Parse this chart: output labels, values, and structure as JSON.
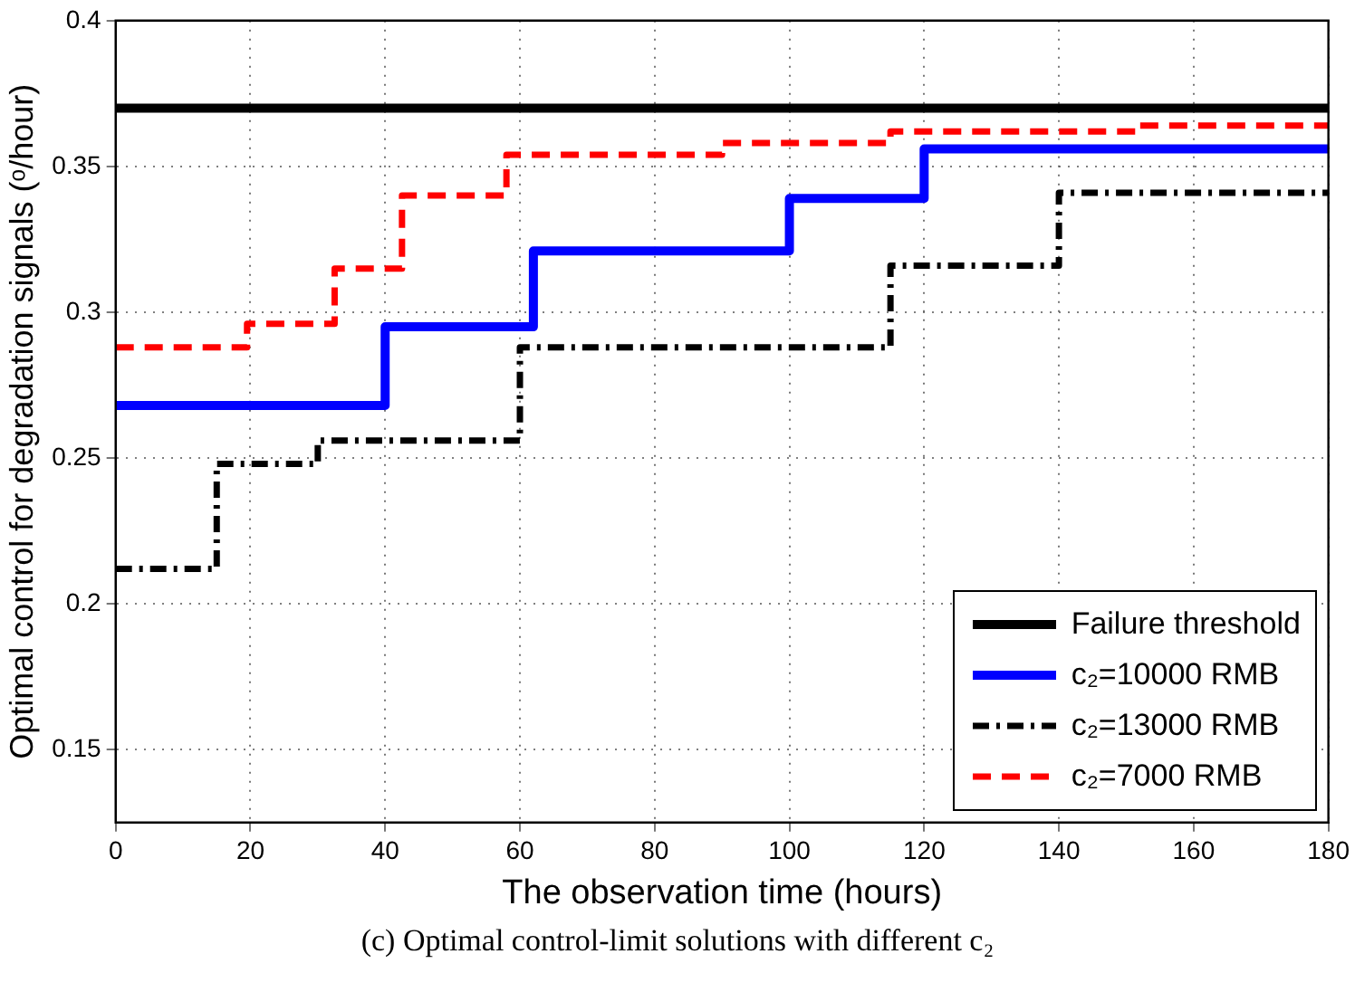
{
  "chart_data": {
    "type": "step",
    "xlabel": "The observation time (hours)",
    "ylabel": "Optimal control for degradation signals (ᵒ/hour)",
    "annotations": [
      "(c) Optimal control-limit solutions with different c₂"
    ],
    "xlim": [
      0,
      180
    ],
    "xticks": [
      0,
      20,
      40,
      60,
      80,
      100,
      120,
      140,
      160,
      180
    ],
    "ylim": [
      0.125,
      0.4
    ],
    "yticks": [
      0.15,
      0.2,
      0.25,
      0.3,
      0.35,
      0.4
    ],
    "grid": true,
    "legend": "bottom right",
    "series": [
      {
        "name": "Failure threshold",
        "type": "line",
        "color": "#000000",
        "line_style": "solid",
        "x": [
          0,
          180
        ],
        "values": [
          0.37,
          0.37
        ]
      },
      {
        "name": "c₂=10000 RMB",
        "color": "#0000ff",
        "line_style": "solid",
        "x": [
          0,
          40,
          62,
          100,
          120,
          180
        ],
        "values": [
          0.268,
          0.295,
          0.321,
          0.339,
          0.356,
          0.356
        ]
      },
      {
        "name": "c₂=13000 RMB",
        "color": "#000000",
        "line_style": "dashdot",
        "x": [
          0,
          15,
          30,
          60,
          115,
          140,
          180
        ],
        "values": [
          0.212,
          0.248,
          0.256,
          0.288,
          0.316,
          0.341,
          0.341
        ]
      },
      {
        "name": "c₂=7000 RMB",
        "color": "#ff0000",
        "line_style": "dashed",
        "x": [
          0,
          19.5,
          32.5,
          42.5,
          58,
          90,
          115,
          152,
          180
        ],
        "values": [
          0.288,
          0.296,
          0.315,
          0.34,
          0.354,
          0.358,
          0.362,
          0.364,
          0.364
        ]
      }
    ]
  }
}
